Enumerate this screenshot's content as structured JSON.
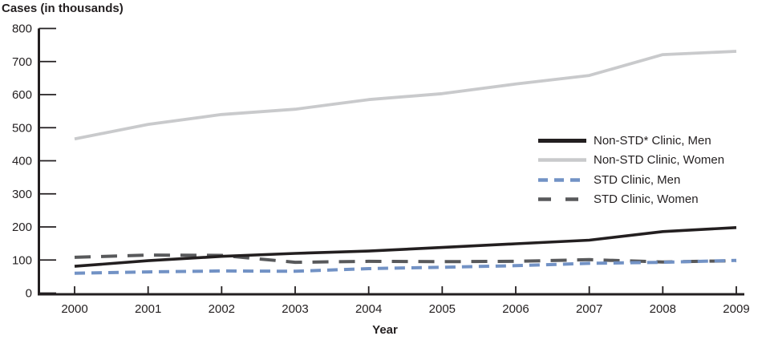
{
  "chart_data": {
    "type": "line",
    "title": "Cases (in thousands)",
    "xlabel": "Year",
    "ylabel": "Cases (in thousands)",
    "x": [
      2000,
      2001,
      2002,
      2003,
      2004,
      2005,
      2006,
      2007,
      2008,
      2009
    ],
    "ylim": [
      0,
      800
    ],
    "yticks": [
      0,
      100,
      200,
      300,
      400,
      500,
      600,
      700,
      800
    ],
    "grid": false,
    "legend_position": "inside-right",
    "axis_color": "#231f20",
    "series": [
      {
        "name": "Non-STD* Clinic, Men",
        "color": "#231f20",
        "dash": "solid",
        "values": [
          81,
          98,
          111,
          120,
          127,
          138,
          149,
          160,
          186,
          198
        ]
      },
      {
        "name": "Non-STD Clinic, Women",
        "color": "#c9cacc",
        "dash": "solid",
        "values": [
          466,
          510,
          540,
          556,
          585,
          603,
          632,
          658,
          721,
          731
        ]
      },
      {
        "name": "STD Clinic, Men",
        "color": "#7292c5",
        "dash": "dashed",
        "values": [
          60,
          64,
          67,
          66,
          74,
          78,
          83,
          90,
          93,
          99
        ]
      },
      {
        "name": "STD Clinic, Women",
        "color": "#58595b",
        "dash": "dashed",
        "values": [
          108,
          115,
          114,
          93,
          96,
          95,
          96,
          101,
          94,
          98
        ]
      }
    ]
  }
}
